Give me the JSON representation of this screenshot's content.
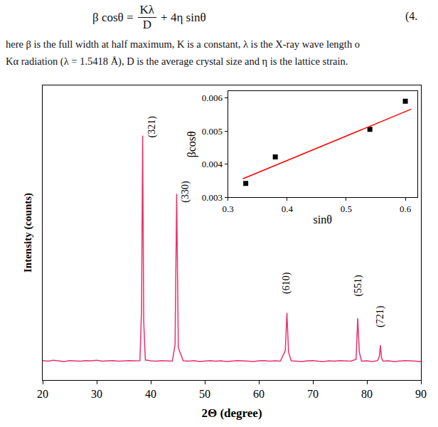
{
  "document": {
    "equation": {
      "lhs": "β cosθ =",
      "numerator": "Kλ",
      "denominator": "D",
      "rhs": "+ 4η sinθ",
      "number": "(4."
    },
    "paragraph": [
      "here β is the full width at half maximum, K is a constant, λ is the X-ray wave length o",
      "Kα radiation (λ = 1.5418 Å), D is the average crystal size and η is the lattice strain."
    ]
  },
  "chart_data": [
    {
      "type": "line",
      "x_label": "2Θ (degree)",
      "y_label": "Intensity (counts)",
      "color": "#e8336e",
      "line_style": "solid",
      "grid": false,
      "tick_labels": "x",
      "xlim": [
        20,
        90
      ],
      "xticks": [
        20,
        30,
        40,
        50,
        60,
        70,
        80,
        90
      ],
      "ylim": [
        0,
        1000
      ],
      "x": [
        20,
        21,
        22,
        23,
        24,
        25,
        26,
        27,
        28,
        29,
        30,
        31,
        32,
        33,
        34,
        35,
        36,
        37,
        38,
        38.3,
        38.5,
        38.7,
        39,
        40,
        41,
        42,
        43,
        44,
        44.5,
        44.8,
        45.1,
        46,
        47,
        48,
        49,
        50,
        51,
        52,
        53,
        54,
        55,
        56,
        57,
        58,
        59,
        60,
        61,
        62,
        63,
        64,
        64.9,
        65.2,
        65.5,
        66,
        67,
        68,
        69,
        70,
        71,
        72,
        73,
        74,
        75,
        76,
        77,
        78,
        78.3,
        78.6,
        79,
        80,
        81,
        82,
        82.3,
        82.5,
        82.7,
        83,
        84,
        85,
        86,
        87,
        88,
        89,
        90
      ],
      "values": [
        66,
        64,
        67,
        65,
        63,
        66,
        65,
        64,
        66,
        65,
        67,
        64,
        65,
        66,
        64,
        65,
        66,
        65,
        66,
        240,
        830,
        200,
        68,
        65,
        64,
        66,
        65,
        64,
        120,
        632,
        110,
        65,
        64,
        66,
        63,
        65,
        66,
        64,
        65,
        63,
        64,
        66,
        65,
        64,
        63,
        65,
        66,
        64,
        65,
        64,
        100,
        228,
        95,
        65,
        64,
        63,
        65,
        66,
        64,
        63,
        65,
        64,
        66,
        65,
        64,
        70,
        210,
        95,
        64,
        65,
        63,
        66,
        80,
        118,
        75,
        64,
        65,
        63,
        64,
        66,
        65,
        64,
        63
      ],
      "annotations": [
        {
          "text": "(321)",
          "x": 40.2,
          "y": 860
        },
        {
          "text": "(330)",
          "x": 46.4,
          "y": 640
        },
        {
          "text": "(610)",
          "x": 65.2,
          "y": 330
        },
        {
          "text": "(551)",
          "x": 78.3,
          "y": 320
        },
        {
          "text": "(721)",
          "x": 82.5,
          "y": 215
        }
      ]
    },
    {
      "type": "scatter",
      "x_label": "sinθ",
      "y_label": "βcosθ",
      "grid": false,
      "xlim": [
        0.3,
        0.62
      ],
      "xticks": [
        0.3,
        0.4,
        0.5,
        0.6
      ],
      "ylim": [
        0.003,
        0.0062
      ],
      "yticks": [
        0.003,
        0.004,
        0.005,
        0.006
      ],
      "series": [
        {
          "type": "scatter",
          "marker": "square",
          "color": "#000000",
          "x": [
            0.33,
            0.38,
            0.54,
            0.6
          ],
          "values": [
            0.00342,
            0.00422,
            0.00505,
            0.0059
          ]
        },
        {
          "type": "line",
          "line_style": "solid",
          "color": "#ff0000",
          "x": [
            0.325,
            0.61
          ],
          "values": [
            0.00356,
            0.00566
          ]
        }
      ]
    }
  ]
}
